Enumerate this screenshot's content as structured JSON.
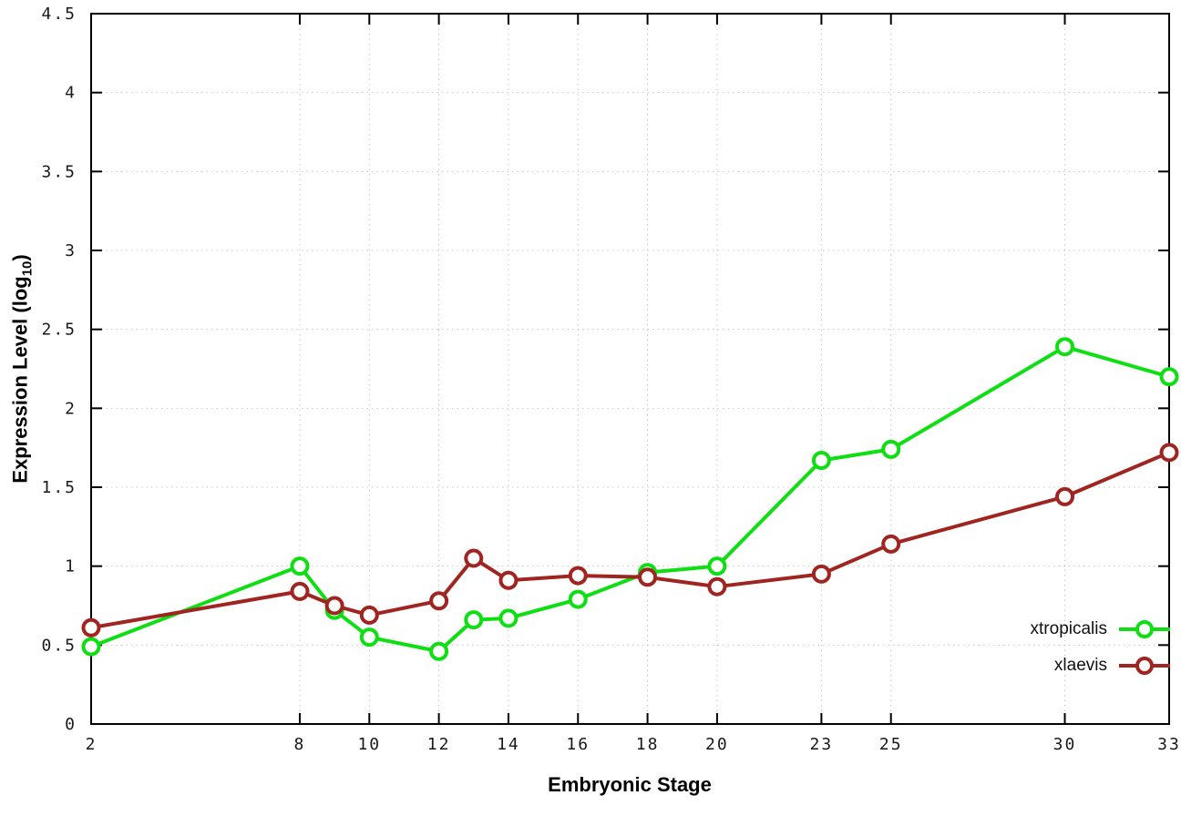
{
  "chart_data": {
    "type": "line",
    "title": "",
    "xlabel": "Embryonic Stage",
    "ylabel": "Expression Level (log10)",
    "ylabel_parts": {
      "prefix": "Expression Level (log",
      "sub": "10",
      "suffix": ")"
    },
    "x": [
      2,
      8,
      9,
      10,
      12,
      13,
      14,
      16,
      18,
      20,
      23,
      25,
      30,
      33
    ],
    "series": [
      {
        "name": "xtropicalis",
        "color": "#0ddf12",
        "values": [
          0.49,
          1.0,
          0.72,
          0.55,
          0.46,
          0.66,
          0.67,
          0.79,
          0.96,
          1.0,
          1.67,
          1.74,
          2.39,
          2.2
        ]
      },
      {
        "name": "xlaevis",
        "color": "#a02420",
        "values": [
          0.61,
          0.84,
          0.75,
          0.69,
          0.78,
          1.05,
          0.91,
          0.94,
          0.93,
          0.87,
          0.95,
          1.14,
          1.44,
          1.72
        ]
      }
    ],
    "xlim": [
      2,
      33
    ],
    "ylim": [
      0,
      4.5
    ],
    "xticks": [
      2,
      8,
      10,
      12,
      14,
      16,
      18,
      20,
      23,
      25,
      30,
      33
    ],
    "yticks": [
      0,
      0.5,
      1,
      1.5,
      2,
      2.5,
      3,
      3.5,
      4,
      4.5
    ],
    "grid": true,
    "grid_color": "#c8c8c8",
    "axis_color": "#000000",
    "marker": "open-circle",
    "legend_position": "inside-right-lower"
  }
}
